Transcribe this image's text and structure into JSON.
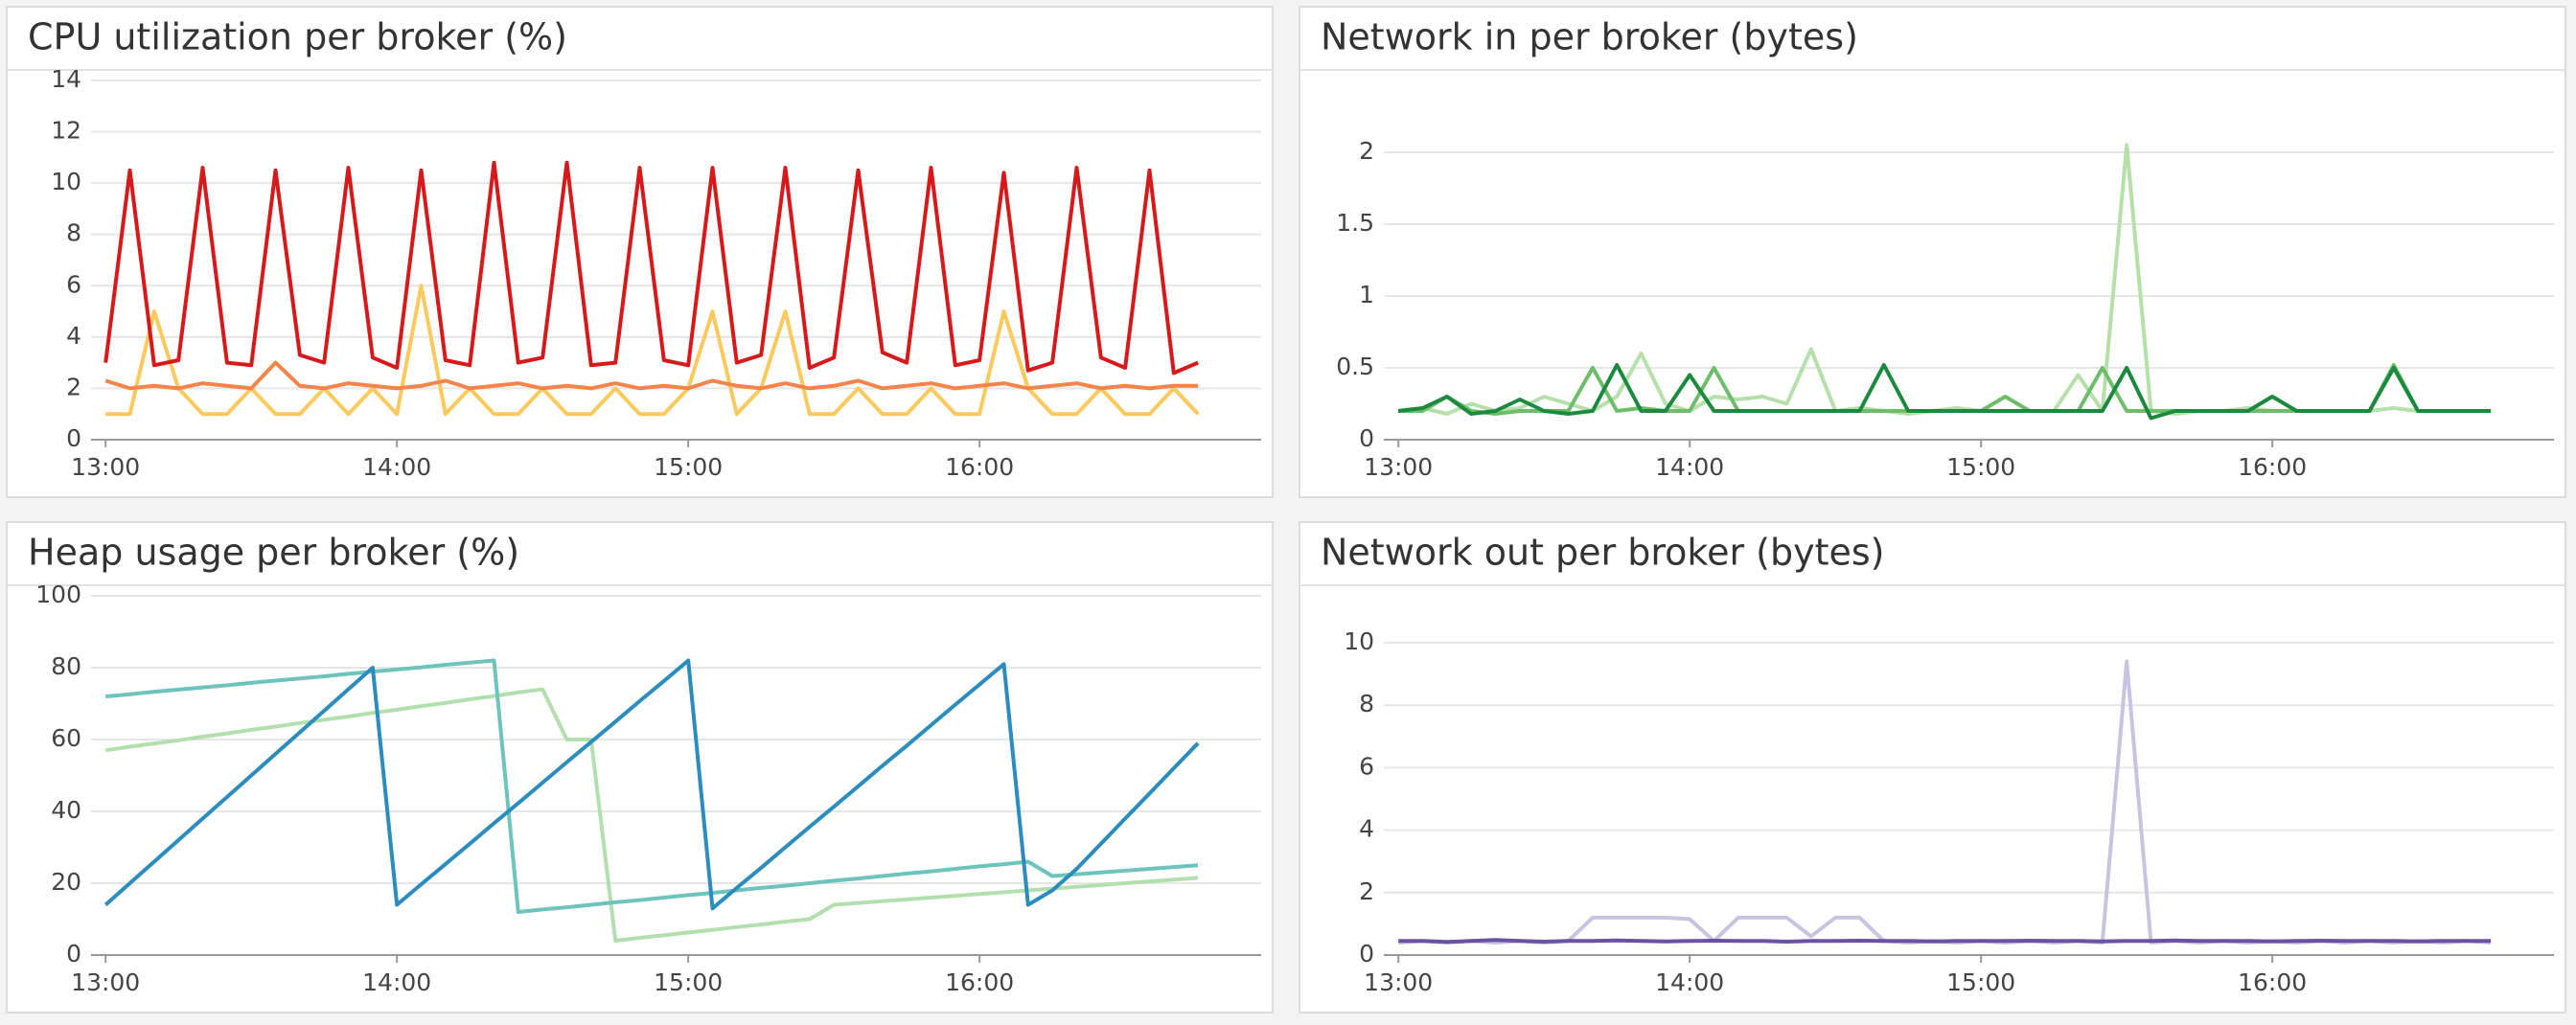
{
  "chart_data": [
    {
      "type": "line",
      "title": "CPU utilization per broker (%)",
      "x": [
        "13:00",
        "13:05",
        "13:10",
        "13:15",
        "13:20",
        "13:25",
        "13:30",
        "13:35",
        "13:40",
        "13:45",
        "13:50",
        "13:55",
        "14:00",
        "14:05",
        "14:10",
        "14:15",
        "14:20",
        "14:25",
        "14:30",
        "14:35",
        "14:40",
        "14:45",
        "14:50",
        "14:55",
        "15:00",
        "15:05",
        "15:10",
        "15:15",
        "15:20",
        "15:25",
        "15:30",
        "15:35",
        "15:40",
        "15:45",
        "15:50",
        "15:55",
        "16:00",
        "16:05",
        "16:10",
        "16:15",
        "16:20",
        "16:25",
        "16:30",
        "16:35",
        "16:40",
        "16:45"
      ],
      "xlim": [
        "12:57",
        "16:58"
      ],
      "xticks": [
        "13:00",
        "14:00",
        "15:00",
        "16:00"
      ],
      "ylim": [
        0,
        14
      ],
      "yticks": [
        0,
        2,
        4,
        6,
        8,
        10,
        12,
        14
      ],
      "grid": true,
      "series": [
        {
          "color": "#fcc95c",
          "values": [
            1,
            1,
            5,
            2,
            1,
            1,
            2,
            1,
            1,
            2,
            1,
            2,
            1,
            6,
            1,
            2,
            1,
            1,
            2,
            1,
            1,
            2,
            1,
            1,
            2,
            5,
            1,
            2,
            5,
            1,
            1,
            2,
            1,
            1,
            2,
            1,
            1,
            5,
            2,
            1,
            1,
            2,
            1,
            1,
            2,
            1
          ]
        },
        {
          "color": "#f4854a",
          "values": [
            2.3,
            2.0,
            2.1,
            2.0,
            2.2,
            2.1,
            2.0,
            3.0,
            2.1,
            2.0,
            2.2,
            2.1,
            2.0,
            2.1,
            2.3,
            2.0,
            2.1,
            2.2,
            2.0,
            2.1,
            2.0,
            2.2,
            2.0,
            2.1,
            2.0,
            2.3,
            2.1,
            2.0,
            2.2,
            2.0,
            2.1,
            2.3,
            2.0,
            2.1,
            2.2,
            2.0,
            2.1,
            2.2,
            2.0,
            2.1,
            2.2,
            2.0,
            2.1,
            2.0,
            2.1,
            2.1
          ]
        },
        {
          "color": "#d7191c",
          "values": [
            3.0,
            10.5,
            2.9,
            3.1,
            10.6,
            3.0,
            2.9,
            10.5,
            3.3,
            3.0,
            10.6,
            3.2,
            2.8,
            10.5,
            3.1,
            2.9,
            10.8,
            3.0,
            3.2,
            10.8,
            2.9,
            3.0,
            10.6,
            3.1,
            2.9,
            10.6,
            3.0,
            3.3,
            10.6,
            2.8,
            3.2,
            10.5,
            3.4,
            3.0,
            10.6,
            2.9,
            3.1,
            10.4,
            2.7,
            3.0,
            10.6,
            3.2,
            2.8,
            10.5,
            2.6,
            3.0
          ]
        }
      ]
    },
    {
      "type": "line",
      "title": "Network in per broker (bytes)",
      "x": [
        "13:00",
        "13:05",
        "13:10",
        "13:15",
        "13:20",
        "13:25",
        "13:30",
        "13:35",
        "13:40",
        "13:45",
        "13:50",
        "13:55",
        "14:00",
        "14:05",
        "14:10",
        "14:15",
        "14:20",
        "14:25",
        "14:30",
        "14:35",
        "14:40",
        "14:45",
        "14:50",
        "14:55",
        "15:00",
        "15:05",
        "15:10",
        "15:15",
        "15:20",
        "15:25",
        "15:30",
        "15:35",
        "15:40",
        "15:45",
        "15:50",
        "15:55",
        "16:00",
        "16:05",
        "16:10",
        "16:15",
        "16:20",
        "16:25",
        "16:30",
        "16:35",
        "16:40",
        "16:45"
      ],
      "xlim": [
        "12:57",
        "16:58"
      ],
      "xticks": [
        "13:00",
        "14:00",
        "15:00",
        "16:00"
      ],
      "ylim": [
        0,
        2.5
      ],
      "yticks": [
        0,
        0.5,
        1,
        1.5,
        2
      ],
      "grid": true,
      "series": [
        {
          "color": "#b5e0aa",
          "values": [
            0.2,
            0.22,
            0.18,
            0.25,
            0.2,
            0.22,
            0.3,
            0.25,
            0.2,
            0.3,
            0.6,
            0.25,
            0.2,
            0.3,
            0.28,
            0.3,
            0.25,
            0.63,
            0.2,
            0.22,
            0.2,
            0.18,
            0.2,
            0.22,
            0.2,
            0.2,
            0.2,
            0.2,
            0.45,
            0.2,
            2.05,
            0.2,
            0.18,
            0.2,
            0.2,
            0.22,
            0.2,
            0.2,
            0.2,
            0.2,
            0.2,
            0.22,
            0.2,
            0.2,
            0.2,
            0.2
          ]
        },
        {
          "color": "#6dbd6a",
          "values": [
            0.2,
            0.2,
            0.3,
            0.2,
            0.18,
            0.2,
            0.2,
            0.2,
            0.5,
            0.2,
            0.22,
            0.2,
            0.2,
            0.5,
            0.2,
            0.2,
            0.2,
            0.2,
            0.2,
            0.2,
            0.2,
            0.2,
            0.2,
            0.2,
            0.2,
            0.3,
            0.2,
            0.2,
            0.2,
            0.5,
            0.2,
            0.2,
            0.2,
            0.2,
            0.2,
            0.2,
            0.2,
            0.2,
            0.2,
            0.2,
            0.2,
            0.52,
            0.2,
            0.2,
            0.2,
            0.2
          ]
        },
        {
          "color": "#1b8a3e",
          "values": [
            0.2,
            0.22,
            0.3,
            0.18,
            0.2,
            0.28,
            0.2,
            0.18,
            0.2,
            0.52,
            0.2,
            0.2,
            0.45,
            0.2,
            0.2,
            0.2,
            0.2,
            0.2,
            0.2,
            0.2,
            0.52,
            0.2,
            0.2,
            0.2,
            0.2,
            0.2,
            0.2,
            0.2,
            0.2,
            0.2,
            0.5,
            0.15,
            0.2,
            0.2,
            0.2,
            0.2,
            0.3,
            0.2,
            0.2,
            0.2,
            0.2,
            0.5,
            0.2,
            0.2,
            0.2,
            0.2
          ]
        }
      ]
    },
    {
      "type": "line",
      "title": "Heap usage per broker (%)",
      "x": [
        "13:00",
        "13:05",
        "13:10",
        "13:15",
        "13:20",
        "13:25",
        "13:30",
        "13:35",
        "13:40",
        "13:45",
        "13:50",
        "13:55",
        "14:00",
        "14:05",
        "14:10",
        "14:15",
        "14:20",
        "14:25",
        "14:30",
        "14:35",
        "14:40",
        "14:45",
        "14:50",
        "14:55",
        "15:00",
        "15:05",
        "15:10",
        "15:15",
        "15:20",
        "15:25",
        "15:30",
        "15:35",
        "15:40",
        "15:45",
        "15:50",
        "15:55",
        "16:00",
        "16:05",
        "16:10",
        "16:15",
        "16:20",
        "16:25",
        "16:30",
        "16:35",
        "16:40",
        "16:45"
      ],
      "xlim": [
        "12:57",
        "16:58"
      ],
      "xticks": [
        "13:00",
        "14:00",
        "15:00",
        "16:00"
      ],
      "ylim": [
        0,
        100
      ],
      "yticks": [
        0,
        20,
        40,
        60,
        80,
        100
      ],
      "grid": true,
      "series": [
        {
          "color": "#b3dfae",
          "values": [
            57,
            58,
            58.9,
            59.8,
            60.8,
            61.7,
            62.7,
            63.6,
            64.6,
            65.5,
            66.4,
            67.4,
            68.3,
            69.3,
            70.2,
            71.2,
            72.1,
            73.1,
            74,
            60,
            60,
            4,
            4.8,
            5.5,
            6.3,
            7,
            7.8,
            8.5,
            9.3,
            10,
            14,
            14.5,
            15,
            15.5,
            16,
            16.5,
            17,
            17.5,
            18,
            18.5,
            19,
            19.5,
            20,
            20.5,
            21,
            21.5
          ]
        },
        {
          "color": "#6cc4bc",
          "values": [
            72,
            72.6,
            73.3,
            73.9,
            74.5,
            75.1,
            75.8,
            76.4,
            77,
            77.6,
            78.3,
            78.9,
            79.5,
            80.1,
            80.8,
            81.4,
            82,
            12,
            12.7,
            13.3,
            14,
            14.7,
            15.3,
            16,
            16.7,
            17.3,
            18,
            18.7,
            19.3,
            20,
            20.7,
            21.3,
            22,
            22.7,
            23.3,
            24,
            24.7,
            25.3,
            26,
            22,
            22.5,
            23,
            23.5,
            24,
            24.5,
            25
          ]
        },
        {
          "color": "#2b8cbe",
          "values": [
            14,
            20,
            26,
            32,
            38,
            44,
            50,
            56,
            62,
            68,
            74,
            80,
            14,
            19.7,
            25.3,
            31,
            36.7,
            42.3,
            48,
            53.7,
            59.3,
            65,
            70.7,
            76.3,
            82,
            13,
            18.7,
            24.3,
            30,
            35.7,
            41.3,
            47,
            52.7,
            58.3,
            64,
            69.7,
            75.3,
            81,
            14,
            18,
            24,
            31,
            38,
            45,
            52,
            59
          ]
        }
      ]
    },
    {
      "type": "line",
      "title": "Network out per broker (bytes)",
      "x": [
        "13:00",
        "13:05",
        "13:10",
        "13:15",
        "13:20",
        "13:25",
        "13:30",
        "13:35",
        "13:40",
        "13:45",
        "13:50",
        "13:55",
        "14:00",
        "14:05",
        "14:10",
        "14:15",
        "14:20",
        "14:25",
        "14:30",
        "14:35",
        "14:40",
        "14:45",
        "14:50",
        "14:55",
        "15:00",
        "15:05",
        "15:10",
        "15:15",
        "15:20",
        "15:25",
        "15:30",
        "15:35",
        "15:40",
        "15:45",
        "15:50",
        "15:55",
        "16:00",
        "16:05",
        "16:10",
        "16:15",
        "16:20",
        "16:25",
        "16:30",
        "16:35",
        "16:40",
        "16:45"
      ],
      "xlim": [
        "12:57",
        "16:58"
      ],
      "xticks": [
        "13:00",
        "14:00",
        "15:00",
        "16:00"
      ],
      "ylim": [
        0,
        11.5
      ],
      "yticks": [
        0,
        2,
        4,
        6,
        8,
        10
      ],
      "grid": true,
      "series": [
        {
          "color": "#c8c3e1",
          "values": [
            0.4,
            0.45,
            0.4,
            0.45,
            0.4,
            0.45,
            0.4,
            0.45,
            1.2,
            1.2,
            1.2,
            1.2,
            1.15,
            0.45,
            1.2,
            1.2,
            1.2,
            0.6,
            1.2,
            1.2,
            0.45,
            0.4,
            0.45,
            0.4,
            0.45,
            0.4,
            0.45,
            0.4,
            0.45,
            0.4,
            9.4,
            0.4,
            0.45,
            0.4,
            0.45,
            0.4,
            0.45,
            0.4,
            0.45,
            0.4,
            0.45,
            0.4,
            0.45,
            0.4,
            0.45,
            0.4
          ]
        },
        {
          "color": "#6a51a3",
          "values": [
            0.45,
            0.45,
            0.42,
            0.45,
            0.48,
            0.45,
            0.43,
            0.45,
            0.45,
            0.47,
            0.45,
            0.44,
            0.45,
            0.46,
            0.45,
            0.45,
            0.43,
            0.45,
            0.45,
            0.46,
            0.45,
            0.45,
            0.44,
            0.45,
            0.45,
            0.45,
            0.46,
            0.45,
            0.45,
            0.44,
            0.45,
            0.45,
            0.47,
            0.45,
            0.45,
            0.45,
            0.44,
            0.45,
            0.46,
            0.45,
            0.45,
            0.45,
            0.44,
            0.45,
            0.45,
            0.45
          ]
        }
      ]
    }
  ]
}
